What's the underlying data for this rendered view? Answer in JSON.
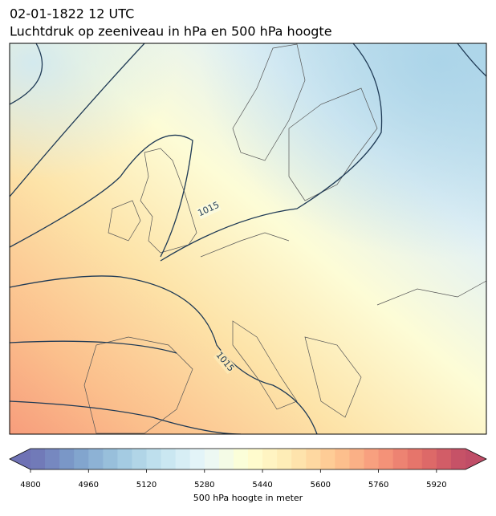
{
  "header": {
    "title": "02-01-1822 12 UTC",
    "subtitle": "Luchtdruk op zeeniveau in hPa en 500 hPa hoogte"
  },
  "map": {
    "contour_labels": [
      "1015",
      "1015"
    ]
  },
  "colorbar": {
    "label": "500 hPa hoogte in meter",
    "range": [
      4800,
      6000
    ],
    "ticks": [
      4800,
      4960,
      5120,
      5280,
      5440,
      5600,
      5760,
      5920
    ]
  }
}
